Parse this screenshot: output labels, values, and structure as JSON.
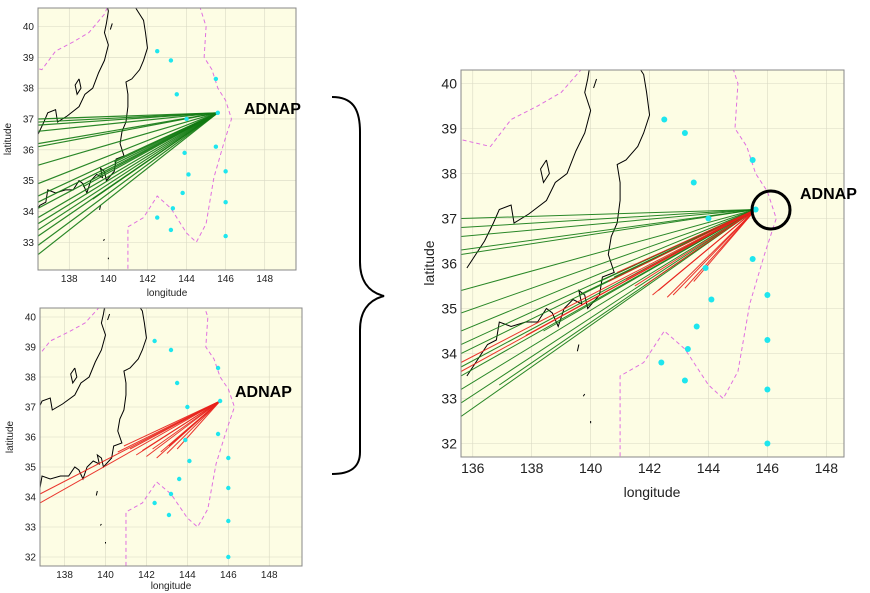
{
  "label_color": "#000000",
  "colors": {
    "background": "#fdfde4",
    "green_track": "#127a12",
    "red_track": "#e8201a",
    "station": "#1ee6ee",
    "eez": "#e070e0",
    "coast": "#000000"
  },
  "chart_data": [
    {
      "type": "scatter",
      "panel": "top-left",
      "title": "",
      "xlabel": "longitude",
      "ylabel": "latitude",
      "xlim": [
        136.4,
        149.6
      ],
      "ylim": [
        32.1,
        40.6
      ],
      "xticks": [
        138,
        140,
        142,
        144,
        146,
        148
      ],
      "yticks": [
        33,
        34,
        35,
        36,
        37,
        38,
        39,
        40
      ],
      "callout": "ADNAP",
      "target": {
        "name": "ADNAP",
        "lon": 145.6,
        "lat": 37.2
      },
      "stations": [
        [
          142.5,
          39.2
        ],
        [
          143.2,
          38.9
        ],
        [
          143.5,
          37.8
        ],
        [
          144.0,
          37.0
        ],
        [
          143.9,
          35.9
        ],
        [
          144.1,
          35.2
        ],
        [
          143.8,
          34.6
        ],
        [
          143.3,
          34.1
        ],
        [
          142.5,
          33.8
        ],
        [
          143.2,
          33.4
        ],
        [
          145.5,
          38.3
        ],
        [
          145.5,
          36.1
        ],
        [
          146.0,
          35.3
        ],
        [
          146.0,
          34.3
        ],
        [
          146.0,
          33.2
        ]
      ],
      "series": [
        {
          "color": "#127a12",
          "origin": [
            145.6,
            37.2
          ],
          "end_points": [
            [
              136.4,
              36.6
            ],
            [
              136.4,
              36.8
            ],
            [
              136.4,
              36.9
            ],
            [
              136.4,
              37.0
            ],
            [
              136.4,
              36.2
            ],
            [
              136.4,
              36.1
            ],
            [
              136.4,
              35.5
            ],
            [
              136.4,
              34.9
            ],
            [
              136.4,
              34.5
            ],
            [
              136.4,
              34.3
            ],
            [
              136.4,
              34.1
            ],
            [
              136.4,
              33.8
            ],
            [
              136.4,
              33.6
            ],
            [
              136.4,
              33.4
            ],
            [
              136.4,
              33.2
            ],
            [
              136.4,
              32.9
            ],
            [
              136.4,
              32.6
            ],
            [
              138.7,
              34.8
            ],
            [
              139.5,
              35.2
            ],
            [
              140.3,
              35.6
            ],
            [
              139.2,
              34.4
            ]
          ]
        }
      ]
    },
    {
      "type": "scatter",
      "panel": "bottom-left",
      "title": "",
      "xlabel": "longitude",
      "ylabel": "latitude",
      "xlim": [
        136.8,
        149.6
      ],
      "ylim": [
        31.7,
        40.3
      ],
      "xticks": [
        138,
        140,
        142,
        144,
        146,
        148
      ],
      "yticks": [
        32,
        33,
        34,
        35,
        36,
        37,
        38,
        39,
        40
      ],
      "callout": "ADNAP",
      "target": {
        "name": "ADNAP",
        "lon": 145.6,
        "lat": 37.2
      },
      "stations": [
        [
          142.4,
          39.2
        ],
        [
          143.2,
          38.9
        ],
        [
          143.5,
          37.8
        ],
        [
          144.0,
          37.0
        ],
        [
          143.9,
          35.9
        ],
        [
          144.1,
          35.2
        ],
        [
          143.6,
          34.6
        ],
        [
          143.2,
          34.1
        ],
        [
          142.4,
          33.8
        ],
        [
          143.1,
          33.4
        ],
        [
          145.5,
          38.3
        ],
        [
          145.5,
          36.1
        ],
        [
          146.0,
          35.3
        ],
        [
          146.0,
          34.3
        ],
        [
          146.0,
          33.2
        ],
        [
          146.0,
          32.0
        ]
      ],
      "series": [
        {
          "color": "#e8201a",
          "origin": [
            145.6,
            37.2
          ],
          "end_points": [
            [
              140.6,
              35.5
            ],
            [
              141.2,
              35.6
            ],
            [
              141.8,
              35.55
            ],
            [
              142.3,
              35.6
            ],
            [
              142.7,
              35.5
            ],
            [
              143.1,
              35.7
            ],
            [
              143.5,
              35.6
            ],
            [
              140.9,
              35.7
            ],
            [
              141.5,
              35.4
            ],
            [
              142.0,
              35.35
            ],
            [
              142.5,
              35.3
            ],
            [
              143.0,
              35.45
            ],
            [
              136.8,
              33.8
            ],
            [
              136.8,
              34.1
            ]
          ]
        }
      ]
    },
    {
      "type": "scatter",
      "panel": "right",
      "title": "",
      "xlabel": "longitude",
      "ylabel": "latitude",
      "xlim": [
        135.6,
        148.6
      ],
      "ylim": [
        31.7,
        40.3
      ],
      "xticks": [
        136,
        138,
        140,
        142,
        144,
        146,
        148
      ],
      "yticks": [
        32,
        33,
        34,
        35,
        36,
        37,
        38,
        39,
        40
      ],
      "callout": "ADNAP",
      "target": {
        "name": "ADNAP",
        "lon": 145.6,
        "lat": 37.2
      },
      "stations": [
        [
          142.5,
          39.2
        ],
        [
          143.2,
          38.9
        ],
        [
          143.5,
          37.8
        ],
        [
          144.0,
          37.0
        ],
        [
          143.9,
          35.9
        ],
        [
          144.1,
          35.2
        ],
        [
          143.6,
          34.6
        ],
        [
          143.3,
          34.1
        ],
        [
          142.4,
          33.8
        ],
        [
          143.2,
          33.4
        ],
        [
          145.5,
          38.3
        ],
        [
          145.5,
          36.1
        ],
        [
          146.0,
          35.3
        ],
        [
          146.0,
          34.3
        ],
        [
          146.0,
          33.2
        ],
        [
          146.0,
          32.0
        ]
      ],
      "series": [
        {
          "color": "#127a12",
          "origin": [
            145.6,
            37.2
          ],
          "end_points": [
            [
              135.6,
              36.6
            ],
            [
              135.6,
              36.8
            ],
            [
              135.6,
              37.0
            ],
            [
              135.6,
              36.3
            ],
            [
              135.6,
              36.2
            ],
            [
              135.6,
              35.4
            ],
            [
              135.6,
              34.9
            ],
            [
              135.6,
              34.5
            ],
            [
              135.6,
              34.2
            ],
            [
              135.6,
              34.0
            ],
            [
              135.6,
              33.7
            ],
            [
              135.6,
              33.5
            ],
            [
              135.6,
              33.2
            ],
            [
              135.6,
              32.9
            ],
            [
              135.6,
              32.6
            ],
            [
              138.4,
              34.5
            ],
            [
              139.6,
              35.3
            ],
            [
              140.3,
              35.6
            ],
            [
              140.8,
              35.7
            ],
            [
              136.9,
              33.3
            ]
          ]
        },
        {
          "color": "#e8201a",
          "origin": [
            145.6,
            37.2
          ],
          "end_points": [
            [
              140.6,
              35.6
            ],
            [
              141.2,
              35.65
            ],
            [
              141.8,
              35.5
            ],
            [
              142.3,
              35.4
            ],
            [
              142.8,
              35.3
            ],
            [
              143.2,
              35.45
            ],
            [
              143.5,
              35.6
            ],
            [
              140.9,
              35.8
            ],
            [
              141.5,
              35.5
            ],
            [
              142.1,
              35.3
            ],
            [
              142.6,
              35.25
            ],
            [
              135.6,
              33.6
            ],
            [
              135.6,
              33.8
            ],
            [
              137.8,
              34.4
            ]
          ]
        }
      ]
    }
  ]
}
